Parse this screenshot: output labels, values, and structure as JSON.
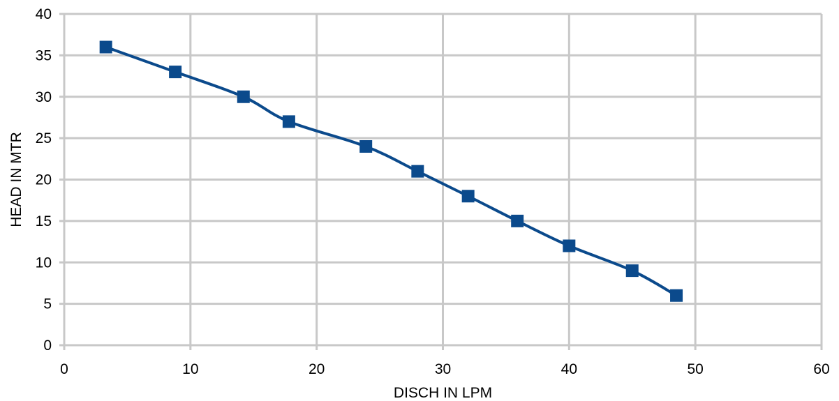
{
  "chart_data": {
    "type": "line",
    "title": "",
    "xlabel": "DISCH IN LPM",
    "ylabel": "HEAD IN MTR",
    "xlim": [
      0,
      60
    ],
    "ylim": [
      0,
      40
    ],
    "xticks": [
      0,
      10,
      20,
      30,
      40,
      50,
      60
    ],
    "yticks": [
      0,
      5,
      10,
      15,
      20,
      25,
      30,
      35,
      40
    ],
    "grid": true,
    "legend": "none",
    "marker": "square",
    "smooth": true,
    "series": [
      {
        "color": "#0b4a8c",
        "x": [
          3.3,
          8.8,
          14.2,
          17.8,
          23.9,
          28.0,
          32.0,
          35.9,
          40.0,
          45.0,
          48.5
        ],
        "y": [
          36,
          33,
          30,
          27,
          24,
          21,
          18,
          15,
          12,
          9,
          6
        ]
      }
    ],
    "colors": {
      "grid": "#c8c8c8",
      "series": "#0b4a8c",
      "text": "#000000"
    }
  }
}
